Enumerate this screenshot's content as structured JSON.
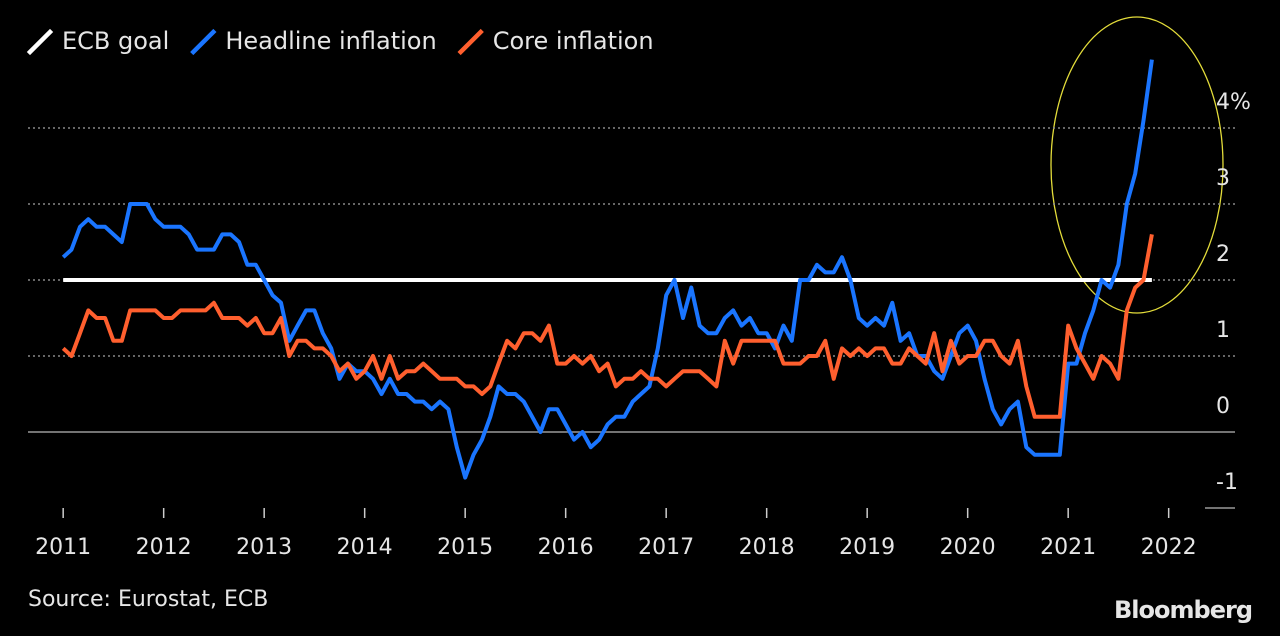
{
  "chart_data": {
    "type": "line",
    "source": "Source: Eurostat, ECB",
    "credit": "Bloomberg",
    "x": [
      2011,
      2011.083,
      2011.167,
      2011.25,
      2011.333,
      2011.417,
      2011.5,
      2011.583,
      2011.667,
      2011.75,
      2011.833,
      2011.917,
      2012,
      2012.083,
      2012.167,
      2012.25,
      2012.333,
      2012.417,
      2012.5,
      2012.583,
      2012.667,
      2012.75,
      2012.833,
      2012.917,
      2013,
      2013.083,
      2013.167,
      2013.25,
      2013.333,
      2013.417,
      2013.5,
      2013.583,
      2013.667,
      2013.75,
      2013.833,
      2013.917,
      2014,
      2014.083,
      2014.167,
      2014.25,
      2014.333,
      2014.417,
      2014.5,
      2014.583,
      2014.667,
      2014.75,
      2014.833,
      2014.917,
      2015,
      2015.083,
      2015.167,
      2015.25,
      2015.333,
      2015.417,
      2015.5,
      2015.583,
      2015.667,
      2015.75,
      2015.833,
      2015.917,
      2016,
      2016.083,
      2016.167,
      2016.25,
      2016.333,
      2016.417,
      2016.5,
      2016.583,
      2016.667,
      2016.75,
      2016.833,
      2016.917,
      2017,
      2017.083,
      2017.167,
      2017.25,
      2017.333,
      2017.417,
      2017.5,
      2017.583,
      2017.667,
      2017.75,
      2017.833,
      2017.917,
      2018,
      2018.083,
      2018.167,
      2018.25,
      2018.333,
      2018.417,
      2018.5,
      2018.583,
      2018.667,
      2018.75,
      2018.833,
      2018.917,
      2019,
      2019.083,
      2019.167,
      2019.25,
      2019.333,
      2019.417,
      2019.5,
      2019.583,
      2019.667,
      2019.75,
      2019.833,
      2019.917,
      2020,
      2020.083,
      2020.167,
      2020.25,
      2020.333,
      2020.417,
      2020.5,
      2020.583,
      2020.667,
      2020.75,
      2020.833,
      2020.917,
      2021,
      2021.083,
      2021.167,
      2021.25,
      2021.333,
      2021.417,
      2021.5,
      2021.583,
      2021.667,
      2021.75,
      2021.833
    ],
    "series": [
      {
        "name": "ECB goal",
        "color": "#ffffff",
        "x": [
          2011,
          2021.833
        ],
        "values": [
          2,
          2
        ]
      },
      {
        "name": "Headline inflation",
        "color": "#1a75ff",
        "values": [
          2.3,
          2.4,
          2.7,
          2.8,
          2.7,
          2.7,
          2.6,
          2.5,
          3.0,
          3.0,
          3.0,
          2.8,
          2.7,
          2.7,
          2.7,
          2.6,
          2.4,
          2.4,
          2.4,
          2.6,
          2.6,
          2.5,
          2.2,
          2.2,
          2.0,
          1.8,
          1.7,
          1.2,
          1.4,
          1.6,
          1.6,
          1.3,
          1.1,
          0.7,
          0.9,
          0.8,
          0.8,
          0.7,
          0.5,
          0.7,
          0.5,
          0.5,
          0.4,
          0.4,
          0.3,
          0.4,
          0.3,
          -0.2,
          -0.6,
          -0.3,
          -0.1,
          0.2,
          0.6,
          0.5,
          0.5,
          0.4,
          0.2,
          0.0,
          0.3,
          0.3,
          0.1,
          -0.1,
          0.0,
          -0.2,
          -0.1,
          0.1,
          0.2,
          0.2,
          0.4,
          0.5,
          0.6,
          1.1,
          1.8,
          2.0,
          1.5,
          1.9,
          1.4,
          1.3,
          1.3,
          1.5,
          1.6,
          1.4,
          1.5,
          1.3,
          1.3,
          1.1,
          1.4,
          1.2,
          2.0,
          2.0,
          2.2,
          2.1,
          2.1,
          2.3,
          2.0,
          1.5,
          1.4,
          1.5,
          1.4,
          1.7,
          1.2,
          1.3,
          1.0,
          1.0,
          0.8,
          0.7,
          1.0,
          1.3,
          1.4,
          1.2,
          0.7,
          0.3,
          0.1,
          0.3,
          0.4,
          -0.2,
          -0.3,
          -0.3,
          -0.3,
          -0.3,
          0.9,
          0.9,
          1.3,
          1.6,
          2.0,
          1.9,
          2.2,
          3.0,
          3.4,
          4.1,
          4.9
        ]
      },
      {
        "name": "Core inflation",
        "color": "#ff5f2e",
        "values": [
          1.1,
          1.0,
          1.3,
          1.6,
          1.5,
          1.5,
          1.2,
          1.2,
          1.6,
          1.6,
          1.6,
          1.6,
          1.5,
          1.5,
          1.6,
          1.6,
          1.6,
          1.6,
          1.7,
          1.5,
          1.5,
          1.5,
          1.4,
          1.5,
          1.3,
          1.3,
          1.5,
          1.0,
          1.2,
          1.2,
          1.1,
          1.1,
          1.0,
          0.8,
          0.9,
          0.7,
          0.8,
          1.0,
          0.7,
          1.0,
          0.7,
          0.8,
          0.8,
          0.9,
          0.8,
          0.7,
          0.7,
          0.7,
          0.6,
          0.6,
          0.5,
          0.6,
          0.9,
          1.2,
          1.1,
          1.3,
          1.3,
          1.2,
          1.4,
          0.9,
          0.9,
          1.0,
          0.9,
          1.0,
          0.8,
          0.9,
          0.6,
          0.7,
          0.7,
          0.8,
          0.7,
          0.7,
          0.6,
          0.7,
          0.8,
          0.8,
          0.8,
          0.7,
          0.6,
          1.2,
          0.9,
          1.2,
          1.2,
          1.2,
          1.2,
          1.2,
          0.9,
          0.9,
          0.9,
          1.0,
          1.0,
          1.2,
          0.7,
          1.1,
          1.0,
          1.1,
          1.0,
          1.1,
          1.1,
          0.9,
          0.9,
          1.1,
          1.0,
          0.9,
          1.3,
          0.8,
          1.2,
          0.9,
          1.0,
          1.0,
          1.2,
          1.2,
          1.0,
          0.9,
          1.2,
          0.6,
          0.2,
          0.2,
          0.2,
          0.2,
          1.4,
          1.1,
          0.9,
          0.7,
          1.0,
          0.9,
          0.7,
          1.6,
          1.9,
          2.0,
          2.6
        ]
      }
    ],
    "xlim": [
      2010.65,
      2022.66
    ],
    "xticks": [
      2011,
      2012,
      2013,
      2014,
      2015,
      2016,
      2017,
      2018,
      2019,
      2020,
      2021,
      2022
    ],
    "ylim": [
      -1,
      5
    ],
    "yticks": [
      -1,
      0,
      1,
      2,
      3,
      {
        "value": 4,
        "label": "4%"
      }
    ],
    "grid": true,
    "legend": "top-left"
  }
}
